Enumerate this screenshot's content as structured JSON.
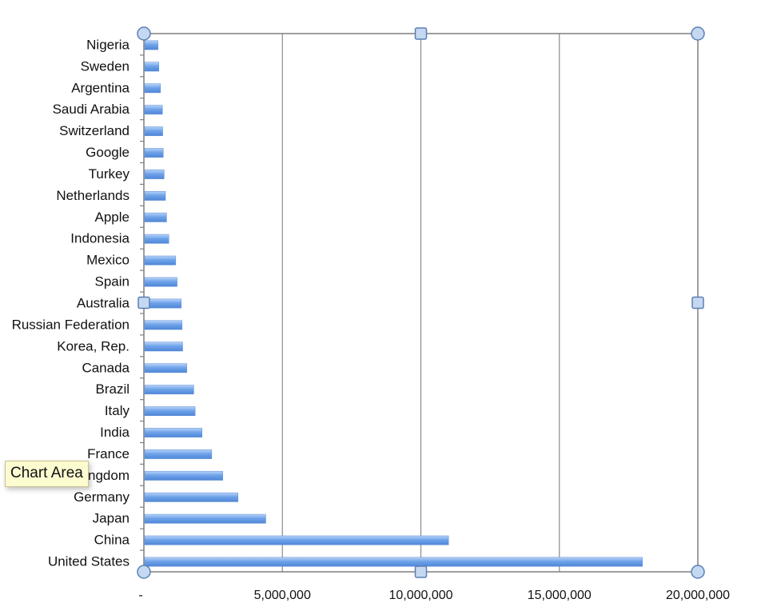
{
  "chart_data": {
    "type": "bar",
    "orientation": "horizontal",
    "categories": [
      "United States",
      "China",
      "Japan",
      "Germany",
      "United Kingdom",
      "France",
      "India",
      "Italy",
      "Brazil",
      "Canada",
      "Korea, Rep.",
      "Russian Federation",
      "Australia",
      "Spain",
      "Mexico",
      "Indonesia",
      "Apple",
      "Netherlands",
      "Turkey",
      "Google",
      "Switzerland",
      "Saudi Arabia",
      "Argentina",
      "Sweden",
      "Nigeria"
    ],
    "values": [
      18000000,
      11000000,
      4400000,
      3400000,
      2850000,
      2450000,
      2100000,
      1850000,
      1800000,
      1550000,
      1400000,
      1380000,
      1350000,
      1200000,
      1150000,
      900000,
      820000,
      780000,
      730000,
      700000,
      680000,
      670000,
      600000,
      540000,
      510000
    ],
    "xlim": [
      0,
      20000000
    ],
    "x_ticks": [
      "-",
      "5,000,000",
      "10,000,000",
      "15,000,000",
      "20,000,000"
    ],
    "grid": true,
    "bar_color": "#6fa3ea",
    "xlabel": "",
    "ylabel": "",
    "title": ""
  },
  "tooltip": {
    "text": "Chart Area"
  }
}
